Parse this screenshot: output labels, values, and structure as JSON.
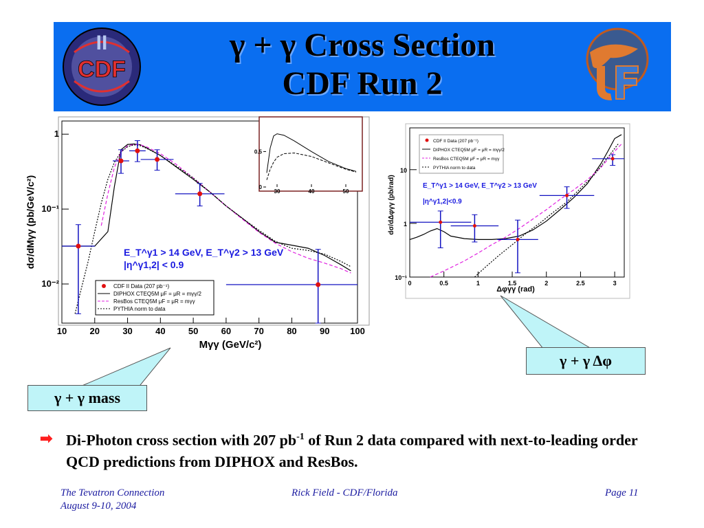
{
  "slide": {
    "title_line1": "γ + γ Cross Section",
    "title_line2": "CDF Run 2",
    "logo_left_text": "CDF",
    "logo_left_roman": "II",
    "callout_mass": "γ + γ  mass",
    "callout_dphi": "γ + γ  Δφ",
    "bullet_text_pre": "Di-Photon cross section with 207 pb",
    "bullet_text_sup": "-1",
    "bullet_text_post": " of Run 2 data compared with next-to-leading order QCD predictions from DIPHOX and ResBos.",
    "footer_left1": "The Tevatron Connection",
    "footer_left2": "August 9-10, 2004",
    "footer_center": "Rick Field - CDF/Florida",
    "footer_right": "Page 11",
    "colors": {
      "banner": "#0a6ef0",
      "data": "#e01010",
      "errorbar": "#1010c0",
      "resbos": "#e020e0",
      "cuts_text": "#1a1ae0",
      "callout_bg": "#bff4f8"
    }
  },
  "chart_data": [
    {
      "type": "line",
      "id": "mass",
      "xlabel": "Mγγ (GeV/c²)",
      "ylabel": "dσ/dMγγ (pb/GeV/c²)",
      "xlim": [
        10,
        100
      ],
      "ylim": [
        0.003,
        1.5
      ],
      "log_y": true,
      "xticks": [
        "10",
        "20",
        "30",
        "40",
        "50",
        "60",
        "70",
        "80",
        "90",
        "100"
      ],
      "yticks": [
        "10⁻²",
        "10⁻¹",
        "1"
      ],
      "cuts_line1": "E_T^γ1 > 14 GeV, E_T^γ2 > 13 GeV",
      "cuts_line2": "|η^γ1,2| < 0.9",
      "legend": [
        "CDF II Data (207 pb⁻¹)",
        "DIPHOX CTEQ5M μF = μR = mγγ/2",
        "ResBos CTEQ5M μF = μR = mγγ",
        "PYTHIA norm to data"
      ],
      "data_points": [
        {
          "x": 15,
          "y": 0.032,
          "xerr": 5,
          "ylo": 0.004,
          "yhi": 0.062
        },
        {
          "x": 28,
          "y": 0.44,
          "xerr": 2.5,
          "ylo": 0.3,
          "yhi": 0.62
        },
        {
          "x": 33,
          "y": 0.6,
          "xerr": 2.5,
          "ylo": 0.43,
          "yhi": 0.82
        },
        {
          "x": 39,
          "y": 0.46,
          "xerr": 5,
          "ylo": 0.33,
          "yhi": 0.62
        },
        {
          "x": 52,
          "y": 0.16,
          "xerr": 7.5,
          "ylo": 0.11,
          "yhi": 0.22
        },
        {
          "x": 88,
          "y": 0.0098,
          "xerr": 28,
          "ylo": 0.003,
          "yhi": 0.029
        }
      ],
      "diphox": {
        "x": [
          10,
          20,
          24,
          26,
          28,
          30,
          32,
          34,
          36,
          40,
          45,
          50,
          55,
          60,
          65,
          70,
          75,
          80,
          85,
          90,
          95,
          98
        ],
        "y": [
          0.032,
          0.032,
          0.05,
          0.2,
          0.62,
          0.73,
          0.74,
          0.72,
          0.65,
          0.52,
          0.36,
          0.25,
          0.17,
          0.11,
          0.075,
          0.05,
          0.036,
          0.033,
          0.03,
          0.024,
          0.018,
          0.015
        ]
      },
      "resbos": {
        "x": [
          22,
          24,
          26,
          28,
          30,
          32,
          34,
          36,
          40,
          45,
          50,
          55,
          60,
          65,
          70,
          75,
          80,
          85,
          90,
          95,
          98
        ],
        "y": [
          0.06,
          0.16,
          0.36,
          0.58,
          0.7,
          0.73,
          0.72,
          0.67,
          0.55,
          0.39,
          0.26,
          0.17,
          0.11,
          0.073,
          0.049,
          0.035,
          0.027,
          0.022,
          0.019,
          0.016,
          0.014
        ]
      },
      "pythia": {
        "x": [
          14,
          18,
          20,
          22,
          24,
          26,
          28,
          30,
          32,
          34,
          36,
          40,
          45,
          50,
          55,
          60,
          65,
          70,
          75,
          80,
          85,
          90,
          95,
          98
        ],
        "y": [
          0.004,
          0.02,
          0.05,
          0.12,
          0.25,
          0.42,
          0.58,
          0.68,
          0.72,
          0.7,
          0.64,
          0.52,
          0.37,
          0.26,
          0.17,
          0.11,
          0.075,
          0.052,
          0.037,
          0.03,
          0.028,
          0.025,
          0.02,
          0.017
        ]
      },
      "inset": {
        "xticks": [
          "30",
          "40",
          "50"
        ],
        "yticks": [
          "0",
          "0.5"
        ],
        "diphox": {
          "x": [
            27,
            28,
            29,
            30,
            32,
            35,
            40,
            45,
            50,
            53
          ],
          "y": [
            0.2,
            0.55,
            0.72,
            0.75,
            0.73,
            0.65,
            0.5,
            0.36,
            0.26,
            0.22
          ]
        },
        "resbos": {
          "x": [
            27,
            28,
            29,
            30,
            32,
            35,
            40,
            45,
            50,
            53
          ],
          "y": [
            0.1,
            0.25,
            0.35,
            0.42,
            0.47,
            0.48,
            0.43,
            0.34,
            0.25,
            0.21
          ]
        }
      }
    },
    {
      "type": "line",
      "id": "dphi",
      "xlabel": "Δφγγ (rad)",
      "ylabel": "dσ/dΔφγγ (pb/rad)",
      "xlim": [
        0,
        3.14
      ],
      "ylim": [
        0.1,
        60
      ],
      "log_y": true,
      "xticks": [
        "0",
        "0.5",
        "1",
        "1.5",
        "2",
        "2.5",
        "3"
      ],
      "yticks": [
        "10⁻¹",
        "1",
        "10"
      ],
      "cuts_line1": "E_T^γ1 > 14 GeV, E_T^γ2 > 13 GeV",
      "cuts_line2": "|η^γ1,2|<0.9",
      "legend": [
        "CDF II Data (207 pb⁻¹)",
        "DIPHOX CTEQ5M μF = μR = mγγ/2",
        "ResBos CTEQ5M μF = μR = mγγ",
        "PYTHIA norm to data"
      ],
      "data_points": [
        {
          "x": 0.45,
          "y": 1.05,
          "xerr": 0.45,
          "ylo": 0.35,
          "yhi": 1.7
        },
        {
          "x": 0.95,
          "y": 0.9,
          "xerr": 0.35,
          "ylo": 0.45,
          "yhi": 1.45
        },
        {
          "x": 1.58,
          "y": 0.5,
          "xerr": 0.3,
          "ylo": 0.12,
          "yhi": 1.15
        },
        {
          "x": 2.3,
          "y": 3.3,
          "xerr": 0.4,
          "ylo": 1.9,
          "yhi": 4.8
        },
        {
          "x": 2.97,
          "y": 16,
          "xerr": 0.3,
          "ylo": 12,
          "yhi": 19
        }
      ],
      "diphox": {
        "x": [
          0,
          0.1,
          0.2,
          0.3,
          0.4,
          0.5,
          0.6,
          0.8,
          1.0,
          1.2,
          1.4,
          1.6,
          1.8,
          2.0,
          2.2,
          2.4,
          2.6,
          2.8,
          2.9,
          3.0,
          3.1
        ],
        "y": [
          0.5,
          0.55,
          0.62,
          0.72,
          0.8,
          0.7,
          0.58,
          0.52,
          0.5,
          0.5,
          0.52,
          0.58,
          0.75,
          1.1,
          1.8,
          3.0,
          5.5,
          13,
          22,
          38,
          45
        ]
      },
      "resbos": {
        "x": [
          0.3,
          0.5,
          0.8,
          1.0,
          1.2,
          1.4,
          1.6,
          1.8,
          2.0,
          2.2,
          2.4,
          2.6,
          2.8,
          3.0,
          3.1
        ],
        "y": [
          0.1,
          0.13,
          0.2,
          0.28,
          0.4,
          0.55,
          0.8,
          1.2,
          1.8,
          2.8,
          4.2,
          6.5,
          11,
          22,
          30
        ]
      },
      "pythia": {
        "x": [
          0.95,
          1.1,
          1.3,
          1.5,
          1.7,
          1.9,
          2.1,
          2.3,
          2.5,
          2.7,
          2.9,
          3.05
        ],
        "y": [
          0.1,
          0.15,
          0.25,
          0.4,
          0.65,
          1.0,
          1.6,
          2.5,
          4.5,
          8,
          17,
          30
        ]
      }
    }
  ]
}
